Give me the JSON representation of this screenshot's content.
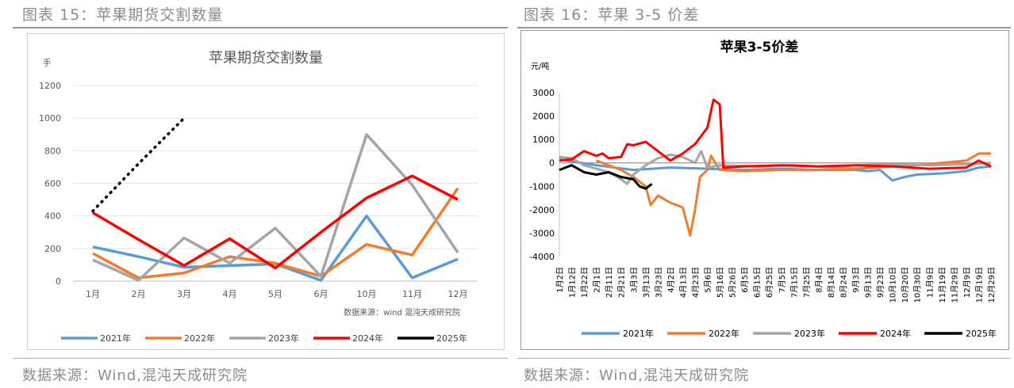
{
  "figures": [
    {
      "title": "图表 15：苹果期货交割数量",
      "source": "数据来源：Wind,混沌天成研究院"
    },
    {
      "title": "图表 16：苹果 3-5 价差",
      "source": "数据来源：Wind,混沌天成研究院"
    }
  ],
  "chart_data": [
    {
      "type": "line",
      "title": "苹果期货交割数量",
      "ylabel": "手",
      "categories": [
        "1月",
        "2月",
        "3月",
        "4月",
        "5月",
        "6月",
        "10月",
        "11月",
        "12月"
      ],
      "ylim": [
        0,
        1200
      ],
      "yticks": [
        0,
        200,
        400,
        600,
        800,
        1000,
        1200
      ],
      "inner_source": "数据来源：wind  混沌天成研究院",
      "grid": true,
      "legend_position": "bottom",
      "series": [
        {
          "name": "2021年",
          "color": "#5b9bd5",
          "dashed": false,
          "values": [
            210,
            150,
            85,
            95,
            105,
            5,
            400,
            20,
            135
          ]
        },
        {
          "name": "2022年",
          "color": "#ed7d31",
          "dashed": false,
          "values": [
            170,
            20,
            50,
            150,
            110,
            30,
            225,
            160,
            570
          ]
        },
        {
          "name": "2023年",
          "color": "#a5a5a5",
          "dashed": false,
          "values": [
            130,
            5,
            265,
            110,
            325,
            30,
            900,
            590,
            175
          ]
        },
        {
          "name": "2024年",
          "color": "#ff0000",
          "dashed": false,
          "values": [
            420,
            255,
            95,
            260,
            80,
            300,
            510,
            645,
            500
          ]
        },
        {
          "name": "2025年",
          "color": "#000000",
          "dashed": true,
          "values": [
            430,
            720,
            1000,
            null,
            null,
            null,
            null,
            null,
            null
          ]
        }
      ]
    },
    {
      "type": "line",
      "title": "苹果3-5价差",
      "ylabel": "元/吨",
      "ylim": [
        -4000,
        3000
      ],
      "yticks": [
        -4000,
        -3000,
        -2000,
        -1000,
        0,
        1000,
        2000,
        3000
      ],
      "xlabels": [
        "1月2日",
        "1月12日",
        "1月22日",
        "2月1日",
        "2月11日",
        "2月21日",
        "3月3日",
        "3月13日",
        "3月23日",
        "4月2日",
        "4月13日",
        "4月23日",
        "5月6日",
        "5月16日",
        "5月26日",
        "6月5日",
        "6月15日",
        "6月25日",
        "7月5日",
        "7月15日",
        "7月25日",
        "8月4日",
        "8月14日",
        "8月24日",
        "9月3日",
        "9月13日",
        "9月23日",
        "10月10日",
        "10月20日",
        "10月30日",
        "11月9日",
        "11月19日",
        "11月29日",
        "12月9日",
        "12月19日",
        "12月29日"
      ],
      "grid": false,
      "legend_position": "bottom",
      "series": [
        {
          "name": "2021年",
          "color": "#5b9bd5",
          "points": [
            [
              0,
              150
            ],
            [
              3,
              -100
            ],
            [
              6,
              -300
            ],
            [
              9,
              -200
            ],
            [
              12,
              -250
            ],
            [
              15,
              -300
            ],
            [
              18,
              -250
            ],
            [
              21,
              -300
            ],
            [
              24,
              -300
            ],
            [
              25,
              -350
            ],
            [
              26,
              -300
            ],
            [
              27,
              -750
            ],
            [
              28,
              -600
            ],
            [
              29,
              -500
            ],
            [
              31,
              -450
            ],
            [
              33,
              -350
            ],
            [
              34,
              -200
            ],
            [
              35,
              -150
            ]
          ]
        },
        {
          "name": "2022年",
          "color": "#ed7d31",
          "points": [
            [
              3,
              100
            ],
            [
              4,
              -100
            ],
            [
              5,
              -300
            ],
            [
              6,
              -600
            ],
            [
              7,
              -1000
            ],
            [
              7.4,
              -1800
            ],
            [
              8,
              -1400
            ],
            [
              9,
              -1700
            ],
            [
              10,
              -1900
            ],
            [
              10.6,
              -3100
            ],
            [
              11,
              -2000
            ],
            [
              11.4,
              -600
            ],
            [
              12,
              -300
            ],
            [
              12.3,
              300
            ],
            [
              13,
              -300
            ],
            [
              15,
              -350
            ],
            [
              18,
              -300
            ],
            [
              21,
              -300
            ],
            [
              24,
              -250
            ],
            [
              27,
              -150
            ],
            [
              30,
              -50
            ],
            [
              33,
              100
            ],
            [
              34,
              400
            ],
            [
              35,
              400
            ]
          ]
        },
        {
          "name": "2023年",
          "color": "#a5a5a5",
          "points": [
            [
              0,
              250
            ],
            [
              1,
              200
            ],
            [
              2,
              -100
            ],
            [
              3,
              -250
            ],
            [
              4,
              -400
            ],
            [
              5,
              -700
            ],
            [
              5.5,
              -900
            ],
            [
              6,
              -500
            ],
            [
              7,
              -100
            ],
            [
              8,
              200
            ],
            [
              9,
              350
            ],
            [
              10,
              250
            ],
            [
              11,
              0
            ],
            [
              11.5,
              500
            ],
            [
              12,
              -200
            ],
            [
              13,
              -100
            ],
            [
              16,
              -150
            ],
            [
              19,
              -100
            ],
            [
              22,
              -200
            ],
            [
              24,
              -100
            ],
            [
              27,
              -50
            ],
            [
              30,
              -100
            ],
            [
              33,
              -50
            ],
            [
              35,
              0
            ]
          ]
        },
        {
          "name": "2024年",
          "color": "#ff0000",
          "points": [
            [
              0,
              100
            ],
            [
              1,
              150
            ],
            [
              2,
              500
            ],
            [
              3,
              300
            ],
            [
              3.5,
              400
            ],
            [
              4,
              200
            ],
            [
              5,
              250
            ],
            [
              5.5,
              800
            ],
            [
              6,
              750
            ],
            [
              7,
              900
            ],
            [
              8,
              500
            ],
            [
              9,
              100
            ],
            [
              10,
              400
            ],
            [
              11,
              800
            ],
            [
              12,
              1500
            ],
            [
              12.5,
              2700
            ],
            [
              13,
              2500
            ],
            [
              13.3,
              -200
            ],
            [
              15,
              -150
            ],
            [
              18,
              -100
            ],
            [
              21,
              -150
            ],
            [
              24,
              -100
            ],
            [
              27,
              -150
            ],
            [
              30,
              -250
            ],
            [
              33,
              -200
            ],
            [
              34,
              100
            ],
            [
              35,
              -150
            ]
          ]
        },
        {
          "name": "2025年",
          "color": "#000000",
          "points": [
            [
              0,
              -300
            ],
            [
              0.5,
              -200
            ],
            [
              1,
              -100
            ],
            [
              2,
              -400
            ],
            [
              3,
              -500
            ],
            [
              4,
              -400
            ],
            [
              5,
              -600
            ],
            [
              6,
              -700
            ],
            [
              6.5,
              -1000
            ],
            [
              7,
              -1100
            ],
            [
              7.5,
              -900
            ]
          ]
        }
      ]
    }
  ]
}
